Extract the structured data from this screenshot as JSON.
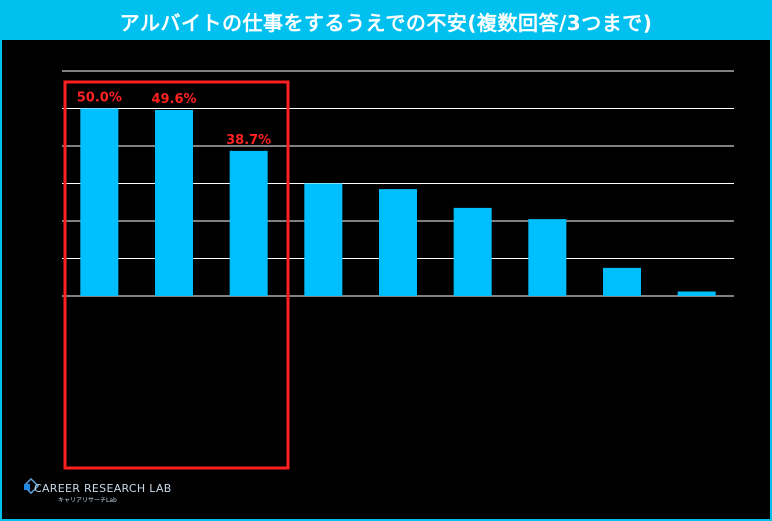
{
  "title": "アルバイトの仕事をするうえでの不安(複数回答/3つまで)",
  "logo": {
    "name": "CAREER RESEARCH LAB",
    "subtitle": "キャリアリサーチLab"
  },
  "colors": {
    "bar": "#00bfff",
    "highlight": "#ff2020",
    "grid": "#ffffff",
    "title_bg": "#00c0f0"
  },
  "chart_data": {
    "type": "bar",
    "title": "アルバイトの仕事をするうえでの不安(複数回答/3つまで)",
    "categories": [
      "",
      "",
      "",
      "",
      "",
      "",
      "",
      "",
      ""
    ],
    "values": [
      50.0,
      49.6,
      38.7,
      30.0,
      28.5,
      23.5,
      20.5,
      7.5,
      1.2
    ],
    "value_labels": [
      "50.0%",
      "49.6%",
      "38.7%",
      "",
      "",
      "",
      "",
      "",
      ""
    ],
    "ylim": [
      0,
      60
    ],
    "grid": true,
    "highlighted_bars": [
      0,
      1,
      2
    ],
    "xlabel": "",
    "ylabel": ""
  }
}
